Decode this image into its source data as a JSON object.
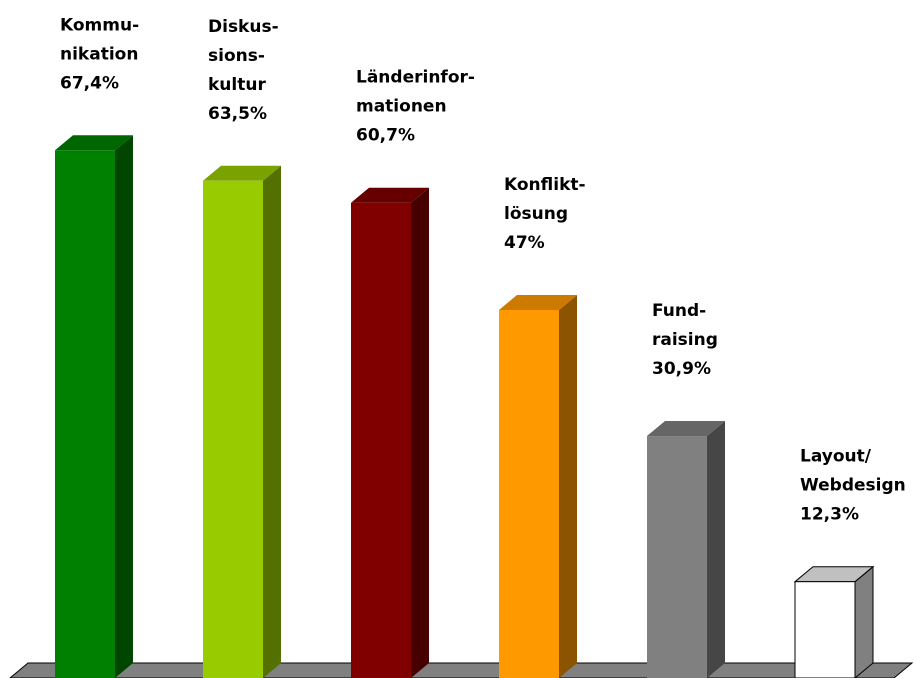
{
  "chart_data": {
    "type": "bar3d",
    "categories": [
      [
        "Kommu-",
        "nikation"
      ],
      [
        "Diskus-",
        "sions-",
        "kultur"
      ],
      [
        "Länderinfor-",
        "mationen"
      ],
      [
        "Konflikt-",
        "lösung"
      ],
      [
        "Fund-",
        "raising"
      ],
      [
        "Layout/",
        "Webdesign"
      ]
    ],
    "values": [
      67.4,
      63.5,
      60.7,
      47,
      30.9,
      12.3
    ],
    "value_labels": [
      "67,4%",
      "63,5%",
      "60,7%",
      "47%",
      "30,9%",
      "12,3%"
    ],
    "colors": [
      "#008000",
      "#99cc00",
      "#800000",
      "#ff9900",
      "#808080",
      "#ffffff"
    ]
  }
}
